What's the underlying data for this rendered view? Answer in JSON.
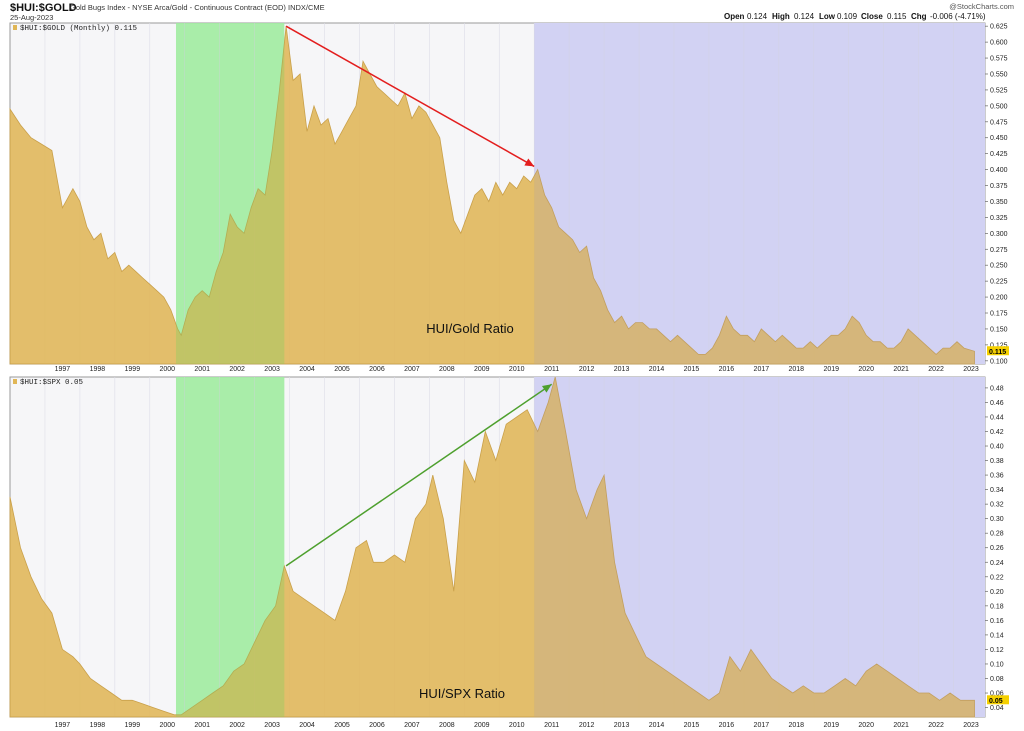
{
  "header": {
    "symbol": "$HUI:$GOLD",
    "description": "Gold Bugs Index - NYSE Arca/Gold - Continuous Contract (EOD) INDX/CME",
    "date": "25-Aug-2023",
    "brand": "@StockCharts.com",
    "ohlc": {
      "open_label": "Open",
      "open": "0.124",
      "high_label": "High",
      "high": "0.124",
      "low_label": "Low",
      "low": "0.109",
      "close_label": "Close",
      "close": "0.115",
      "chg_label": "Chg",
      "chg": "-0.006 (-4.71%)"
    }
  },
  "colors": {
    "area": "#e0b656",
    "area_line": "#c9a04a",
    "green_zone": "#b2f5b2",
    "blue_zone": "#dcdcf8",
    "red_arrow": "#e31e1e",
    "green_arrow": "#4ea02e",
    "label_bg": "#f5d000"
  },
  "chart_data": [
    {
      "type": "area",
      "legend": "$HUI:$GOLD (Monthly) 0.115",
      "annotation": "HUI/Gold Ratio",
      "last_value": "0.115",
      "ylim": [
        0.095,
        0.63
      ],
      "y_ticks": [
        "0.625",
        "0.600",
        "0.575",
        "0.550",
        "0.525",
        "0.500",
        "0.475",
        "0.450",
        "0.425",
        "0.400",
        "0.375",
        "0.350",
        "0.325",
        "0.300",
        "0.275",
        "0.250",
        "0.225",
        "0.200",
        "0.175",
        "0.150",
        "0.125",
        "0.100"
      ],
      "x_ticks": [
        "1997",
        "1998",
        "1999",
        "2000",
        "2001",
        "2002",
        "2003",
        "2004",
        "2005",
        "2006",
        "2007",
        "2008",
        "2009",
        "2010",
        "2011",
        "2012",
        "2013",
        "2014",
        "2015",
        "2016",
        "2017",
        "2018",
        "2019",
        "2020",
        "2021",
        "2022",
        "2023"
      ],
      "green_zone": [
        2000.75,
        2003.85
      ],
      "blue_zone": [
        2011.0,
        2023.9
      ],
      "arrow": {
        "from": [
          2003.9,
          0.625
        ],
        "to": [
          2011.0,
          0.405
        ]
      },
      "x": [
        1996.0,
        1996.3,
        1996.6,
        1996.9,
        1997.2,
        1997.5,
        1997.8,
        1998.0,
        1998.2,
        1998.4,
        1998.6,
        1998.8,
        1999.0,
        1999.2,
        1999.4,
        1999.6,
        1999.8,
        2000.0,
        2000.2,
        2000.4,
        2000.6,
        2000.8,
        2000.9,
        2001.1,
        2001.3,
        2001.5,
        2001.7,
        2001.9,
        2002.1,
        2002.3,
        2002.5,
        2002.7,
        2002.9,
        2003.1,
        2003.3,
        2003.5,
        2003.7,
        2003.9,
        2004.1,
        2004.3,
        2004.5,
        2004.7,
        2004.9,
        2005.1,
        2005.3,
        2005.5,
        2005.7,
        2005.9,
        2006.1,
        2006.3,
        2006.5,
        2006.7,
        2006.9,
        2007.1,
        2007.3,
        2007.5,
        2007.7,
        2007.9,
        2008.1,
        2008.3,
        2008.5,
        2008.7,
        2008.9,
        2009.1,
        2009.3,
        2009.5,
        2009.7,
        2009.9,
        2010.1,
        2010.3,
        2010.5,
        2010.7,
        2010.9,
        2011.1,
        2011.3,
        2011.5,
        2011.7,
        2011.9,
        2012.1,
        2012.3,
        2012.5,
        2012.7,
        2012.9,
        2013.1,
        2013.3,
        2013.5,
        2013.7,
        2013.9,
        2014.1,
        2014.3,
        2014.5,
        2014.7,
        2014.9,
        2015.1,
        2015.3,
        2015.5,
        2015.7,
        2015.9,
        2016.1,
        2016.3,
        2016.5,
        2016.7,
        2016.9,
        2017.1,
        2017.3,
        2017.5,
        2017.7,
        2017.9,
        2018.1,
        2018.3,
        2018.5,
        2018.7,
        2018.9,
        2019.1,
        2019.3,
        2019.5,
        2019.7,
        2019.9,
        2020.1,
        2020.3,
        2020.5,
        2020.7,
        2020.9,
        2021.1,
        2021.3,
        2021.5,
        2021.7,
        2021.9,
        2022.1,
        2022.3,
        2022.5,
        2022.7,
        2022.9,
        2023.1,
        2023.3,
        2023.6
      ],
      "values": [
        0.495,
        0.47,
        0.45,
        0.44,
        0.43,
        0.34,
        0.37,
        0.35,
        0.31,
        0.29,
        0.3,
        0.26,
        0.27,
        0.24,
        0.25,
        0.24,
        0.23,
        0.22,
        0.21,
        0.2,
        0.18,
        0.15,
        0.14,
        0.18,
        0.2,
        0.21,
        0.2,
        0.24,
        0.27,
        0.33,
        0.31,
        0.3,
        0.34,
        0.37,
        0.36,
        0.43,
        0.52,
        0.625,
        0.54,
        0.55,
        0.46,
        0.5,
        0.47,
        0.48,
        0.44,
        0.46,
        0.48,
        0.5,
        0.57,
        0.55,
        0.53,
        0.52,
        0.51,
        0.5,
        0.52,
        0.48,
        0.5,
        0.49,
        0.47,
        0.45,
        0.38,
        0.32,
        0.3,
        0.33,
        0.36,
        0.37,
        0.35,
        0.38,
        0.36,
        0.38,
        0.37,
        0.39,
        0.38,
        0.4,
        0.36,
        0.34,
        0.31,
        0.3,
        0.29,
        0.27,
        0.28,
        0.23,
        0.21,
        0.18,
        0.16,
        0.17,
        0.15,
        0.16,
        0.16,
        0.15,
        0.15,
        0.14,
        0.13,
        0.14,
        0.13,
        0.12,
        0.11,
        0.11,
        0.12,
        0.14,
        0.17,
        0.15,
        0.14,
        0.14,
        0.13,
        0.15,
        0.14,
        0.13,
        0.14,
        0.13,
        0.12,
        0.12,
        0.13,
        0.12,
        0.13,
        0.14,
        0.14,
        0.15,
        0.17,
        0.16,
        0.14,
        0.13,
        0.13,
        0.12,
        0.12,
        0.13,
        0.15,
        0.14,
        0.13,
        0.12,
        0.11,
        0.12,
        0.12,
        0.13,
        0.12,
        0.115
      ]
    },
    {
      "type": "area",
      "legend": "$HUI:$SPX 0.05",
      "annotation": "HUI/SPX Ratio",
      "last_value": "0.05",
      "ylim": [
        0.027,
        0.495
      ],
      "y_ticks": [
        "0.48",
        "0.46",
        "0.44",
        "0.42",
        "0.40",
        "0.38",
        "0.36",
        "0.34",
        "0.32",
        "0.30",
        "0.28",
        "0.26",
        "0.24",
        "0.22",
        "0.20",
        "0.18",
        "0.16",
        "0.14",
        "0.12",
        "0.10",
        "0.08",
        "0.06",
        "0.04"
      ],
      "x_ticks": [
        "1997",
        "1998",
        "1999",
        "2000",
        "2001",
        "2002",
        "2003",
        "2004",
        "2005",
        "2006",
        "2007",
        "2008",
        "2009",
        "2010",
        "2011",
        "2012",
        "2013",
        "2014",
        "2015",
        "2016",
        "2017",
        "2018",
        "2019",
        "2020",
        "2021",
        "2022",
        "2023"
      ],
      "green_zone": [
        2000.75,
        2003.85
      ],
      "blue_zone": [
        2011.0,
        2023.9
      ],
      "arrow": {
        "from": [
          2003.9,
          0.235
        ],
        "to": [
          2011.5,
          0.485
        ]
      },
      "x": [
        1996.0,
        1996.3,
        1996.6,
        1996.9,
        1997.2,
        1997.5,
        1997.8,
        1998.0,
        1998.3,
        1998.6,
        1998.9,
        1999.2,
        1999.5,
        1999.8,
        2000.1,
        2000.4,
        2000.7,
        2000.9,
        2001.2,
        2001.5,
        2001.8,
        2002.1,
        2002.4,
        2002.7,
        2003.0,
        2003.3,
        2003.6,
        2003.85,
        2004.1,
        2004.4,
        2004.7,
        2005.0,
        2005.3,
        2005.6,
        2005.9,
        2006.2,
        2006.4,
        2006.7,
        2007.0,
        2007.3,
        2007.6,
        2007.9,
        2008.1,
        2008.4,
        2008.7,
        2009.0,
        2009.3,
        2009.6,
        2009.9,
        2010.2,
        2010.5,
        2010.8,
        2011.1,
        2011.4,
        2011.6,
        2011.9,
        2012.2,
        2012.5,
        2012.8,
        2013.0,
        2013.3,
        2013.6,
        2013.9,
        2014.2,
        2014.5,
        2014.8,
        2015.1,
        2015.4,
        2015.7,
        2016.0,
        2016.3,
        2016.6,
        2016.9,
        2017.2,
        2017.5,
        2017.8,
        2018.1,
        2018.4,
        2018.7,
        2019.0,
        2019.3,
        2019.6,
        2019.9,
        2020.2,
        2020.5,
        2020.8,
        2021.1,
        2021.4,
        2021.7,
        2022.0,
        2022.3,
        2022.6,
        2022.9,
        2023.2,
        2023.6
      ],
      "values": [
        0.33,
        0.26,
        0.22,
        0.19,
        0.17,
        0.12,
        0.11,
        0.1,
        0.08,
        0.07,
        0.06,
        0.05,
        0.05,
        0.045,
        0.04,
        0.035,
        0.03,
        0.03,
        0.04,
        0.05,
        0.06,
        0.07,
        0.09,
        0.1,
        0.13,
        0.16,
        0.18,
        0.235,
        0.2,
        0.19,
        0.18,
        0.17,
        0.16,
        0.2,
        0.26,
        0.27,
        0.24,
        0.24,
        0.25,
        0.24,
        0.3,
        0.32,
        0.36,
        0.3,
        0.2,
        0.38,
        0.35,
        0.42,
        0.38,
        0.43,
        0.44,
        0.45,
        0.42,
        0.46,
        0.495,
        0.42,
        0.34,
        0.3,
        0.34,
        0.36,
        0.24,
        0.17,
        0.14,
        0.11,
        0.1,
        0.09,
        0.08,
        0.07,
        0.06,
        0.05,
        0.06,
        0.11,
        0.09,
        0.12,
        0.1,
        0.08,
        0.07,
        0.06,
        0.07,
        0.06,
        0.06,
        0.07,
        0.08,
        0.07,
        0.09,
        0.1,
        0.09,
        0.08,
        0.07,
        0.06,
        0.06,
        0.05,
        0.06,
        0.05,
        0.05
      ]
    }
  ]
}
